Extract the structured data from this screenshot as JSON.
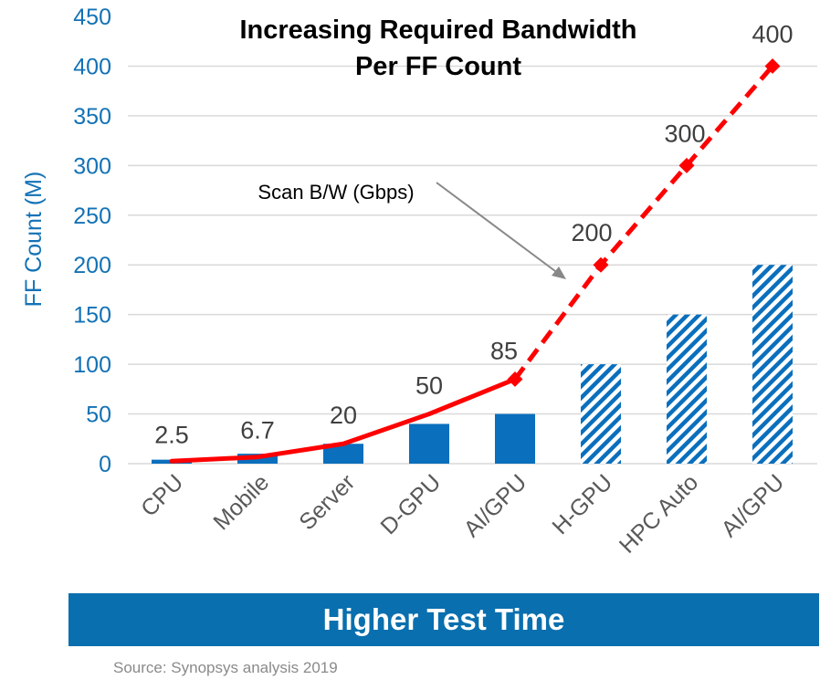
{
  "chart_data": {
    "type": "bar",
    "title": "Increasing  Required Bandwidth\nPer FF Count",
    "title_lines": [
      "Increasing  Required Bandwidth",
      "Per FF Count"
    ],
    "ylabel": "FF Count (M)",
    "xlabel": "",
    "ylim": [
      0,
      450
    ],
    "yticks": [
      0,
      50,
      100,
      150,
      200,
      250,
      300,
      350,
      400,
      450
    ],
    "grid": true,
    "categories": [
      "CPU",
      "Mobile",
      "Server",
      "D-GPU",
      "AI/GPU",
      "H-GPU",
      "HPC Auto",
      "AI/GPU"
    ],
    "series": [
      {
        "name": "FF Count (M)",
        "type": "bar",
        "values": [
          4,
          10,
          20,
          40,
          50,
          100,
          150,
          200
        ],
        "hatched": [
          false,
          false,
          false,
          false,
          false,
          true,
          true,
          true
        ],
        "color": "#0a6fbd"
      },
      {
        "name": "Scan B/W (Gbps)",
        "type": "line",
        "values": [
          2.5,
          6.7,
          20,
          50,
          85,
          200,
          300,
          400
        ],
        "labels": [
          "2.5",
          "6.7",
          "20",
          "50",
          "85",
          "200",
          "300",
          "400"
        ],
        "dashed_from_index": 4,
        "color": "#ff0000"
      }
    ],
    "annotation": "Scan B/W (Gbps)"
  },
  "banner": "Higher Test Time",
  "source": "Source: Synopsys analysis 2019",
  "colors": {
    "axis_text": "#1372b5",
    "bar": "#0a6fbd",
    "line": "#ff0000",
    "banner": "#0a6fae"
  }
}
